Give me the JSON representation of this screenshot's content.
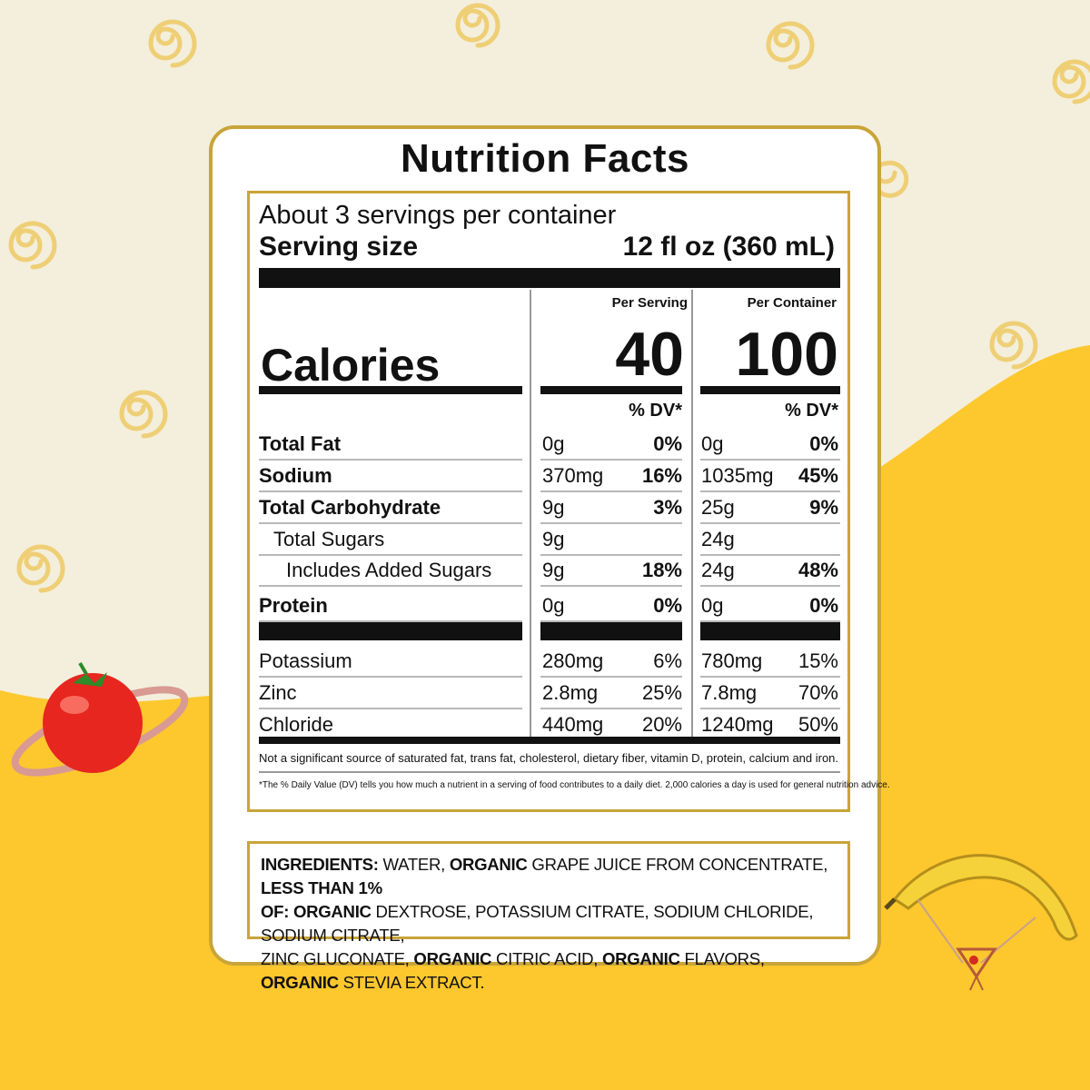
{
  "title": "Nutrition Facts",
  "servings_per_container": "About 3 servings per container",
  "serving_size_label": "Serving size",
  "serving_size_value": "12 fl oz (360 mL)",
  "col_per_serving": "Per Serving",
  "col_per_container": "Per Container",
  "calories_label": "Calories",
  "calories_per_serving": "40",
  "calories_per_container": "100",
  "dv_header": "% DV*",
  "nutrients": [
    {
      "name": "Total Fat",
      "serving_amt": "0g",
      "serving_dv": "0%",
      "container_amt": "0g",
      "container_dv": "0%"
    },
    {
      "name": "Sodium",
      "serving_amt": "370mg",
      "serving_dv": "16%",
      "container_amt": "1035mg",
      "container_dv": "45%"
    },
    {
      "name": "Total Carbohydrate",
      "serving_amt": "9g",
      "serving_dv": "3%",
      "container_amt": "25g",
      "container_dv": "9%"
    },
    {
      "name": "Total Sugars",
      "serving_amt": "9g",
      "serving_dv": "",
      "container_amt": "24g",
      "container_dv": ""
    },
    {
      "name": "Includes Added Sugars",
      "serving_amt": "9g",
      "serving_dv": "18%",
      "container_amt": "24g",
      "container_dv": "48%"
    },
    {
      "name": "Protein",
      "serving_amt": "0g",
      "serving_dv": "0%",
      "container_amt": "0g",
      "container_dv": "0%"
    }
  ],
  "minerals": [
    {
      "name": "Potassium",
      "serving_amt": "280mg",
      "serving_dv": "6%",
      "container_amt": "780mg",
      "container_dv": "15%"
    },
    {
      "name": "Zinc",
      "serving_amt": "2.8mg",
      "serving_dv": "25%",
      "container_amt": "7.8mg",
      "container_dv": "70%"
    },
    {
      "name": "Chloride",
      "serving_amt": "440mg",
      "serving_dv": "20%",
      "container_amt": "1240mg",
      "container_dv": "50%"
    }
  ],
  "footnote_1": "Not a significant source of saturated fat, trans fat, cholesterol, dietary fiber, vitamin D, protein, calcium and iron.",
  "footnote_2": "*The % Daily Value (DV) tells you how much a nutrient in a serving of food contributes to a daily diet. 2,000 calories a day is used for general nutrition advice.",
  "ingredients": {
    "label": "INGREDIENTS:",
    "l1_a": " WATER, ",
    "l1_b": "ORGANIC",
    "l1_c": " GRAPE JUICE  FROM CONCENTRATE, ",
    "l1_d": "LESS THAN 1%",
    "l2_a": "OF: ORGANIC",
    "l2_b": " DEXTROSE, POTASSIUM CITRATE, SODIUM CHLORIDE, SODIUM CITRATE,",
    "l3_a": "ZINC GLUCONATE, ",
    "l3_b": "ORGANIC",
    "l3_c": " CITRIC ACID, ",
    "l3_d": "ORGANIC",
    "l3_e": " FLAVORS, ",
    "l3_f": "ORGANIC",
    "l3_g": " STEVIA EXTRACT."
  },
  "colors": {
    "background": "#f3efdc",
    "wave": "#fdc72e",
    "border": "#c9a43a"
  },
  "decorations": [
    "swirl-icon",
    "tomato-planet-icon",
    "banana-parachute-icon"
  ]
}
